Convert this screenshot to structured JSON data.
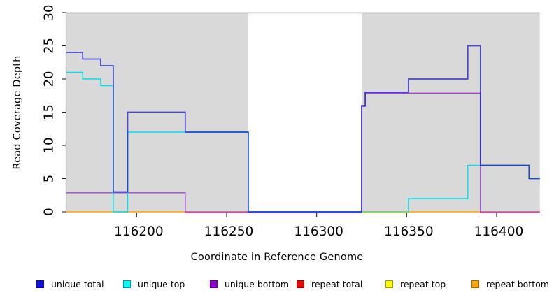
{
  "chart_data": {
    "type": "line",
    "subtype": "step-coverage",
    "title": "",
    "xlabel": "Coordinate in Reference Genome",
    "ylabel": "Read Coverage Depth",
    "xlim": [
      116161,
      116424
    ],
    "ylim": [
      0,
      30
    ],
    "x_ticks": [
      116200,
      116250,
      116300,
      116350,
      116400
    ],
    "y_ticks": [
      0,
      5,
      10,
      15,
      20,
      25,
      30
    ],
    "grid": false,
    "legend_position": "bottom",
    "plot_bg_covered": "#D9D9D9",
    "plot_bg_uncovered": "#FFFFFF",
    "top_border_color": "#8C8C8C",
    "covered_regions": [
      [
        116161,
        116262
      ],
      [
        116325,
        116424
      ]
    ],
    "uncovered_region": [
      116262,
      116325
    ],
    "series": [
      {
        "name": "unique total",
        "color": "#2222CC",
        "steps": [
          [
            116161,
            24
          ],
          [
            116170,
            23
          ],
          [
            116180,
            22
          ],
          [
            116187,
            3
          ],
          [
            116195,
            15
          ],
          [
            116227,
            12
          ],
          [
            116262,
            0
          ],
          [
            116325,
            16
          ],
          [
            116327,
            18
          ],
          [
            116351,
            20
          ],
          [
            116384,
            25
          ],
          [
            116391,
            7
          ],
          [
            116418,
            5
          ],
          [
            116424,
            5
          ]
        ]
      },
      {
        "name": "unique top",
        "color": "#00E0EE",
        "steps": [
          [
            116161,
            21
          ],
          [
            116170,
            20
          ],
          [
            116180,
            19
          ],
          [
            116187,
            0
          ],
          [
            116195,
            12
          ],
          [
            116262,
            0
          ],
          [
            116351,
            2
          ],
          [
            116384,
            7
          ],
          [
            116418,
            5
          ],
          [
            116424,
            5
          ]
        ]
      },
      {
        "name": "unique bottom",
        "color": "#9933CC",
        "steps": [
          [
            116161,
            3
          ],
          [
            116227,
            0
          ],
          [
            116325,
            16
          ],
          [
            116327,
            18
          ],
          [
            116391,
            0
          ],
          [
            116424,
            0
          ]
        ]
      },
      {
        "name": "repeat total",
        "color": "#DD0000",
        "steps": [
          [
            116161,
            0
          ],
          [
            116424,
            0
          ]
        ]
      },
      {
        "name": "repeat top",
        "color": "#F0F000",
        "steps": [
          [
            116161,
            0
          ],
          [
            116424,
            0
          ]
        ]
      },
      {
        "name": "repeat bottom",
        "color": "#FFA500",
        "steps": [
          [
            116161,
            0
          ],
          [
            116424,
            0
          ]
        ]
      }
    ],
    "zero_line_rendered_segments": [
      {
        "from": 116161,
        "to": 116227,
        "color": "#FFA500",
        "layer": "under",
        "dy": 0
      },
      {
        "from": 116227,
        "to": 116262,
        "color": "#CC5577",
        "layer": "under",
        "dy": 0
      },
      {
        "from": 116262,
        "to": 116325,
        "color": "#5E45E6",
        "layer": "under",
        "dy": 0
      },
      {
        "from": 116325,
        "to": 116351,
        "color": "#E6E070",
        "layer": "over",
        "dy": 1.2
      },
      {
        "from": 116325,
        "to": 116351,
        "color": "#7CC87C",
        "layer": "over",
        "dy": 0
      },
      {
        "from": 116351,
        "to": 116391,
        "color": "#FFA500",
        "layer": "under",
        "dy": 0
      },
      {
        "from": 116391,
        "to": 116424,
        "color": "#CC5577",
        "layer": "under",
        "dy": 0
      }
    ]
  },
  "legend": {
    "items": [
      {
        "label": "unique total",
        "color": "#1212E0",
        "border": "#0A0A99"
      },
      {
        "label": "unique top",
        "color": "#00FFFF",
        "border": "#00999B"
      },
      {
        "label": "unique bottom",
        "color": "#9400D3",
        "border": "#5C0083"
      },
      {
        "label": "repeat total",
        "color": "#EE0000",
        "border": "#990000"
      },
      {
        "label": "repeat top",
        "color": "#FFFF00",
        "border": "#99990A"
      },
      {
        "label": "repeat bottom",
        "color": "#FFA500",
        "border": "#A06800"
      }
    ]
  }
}
